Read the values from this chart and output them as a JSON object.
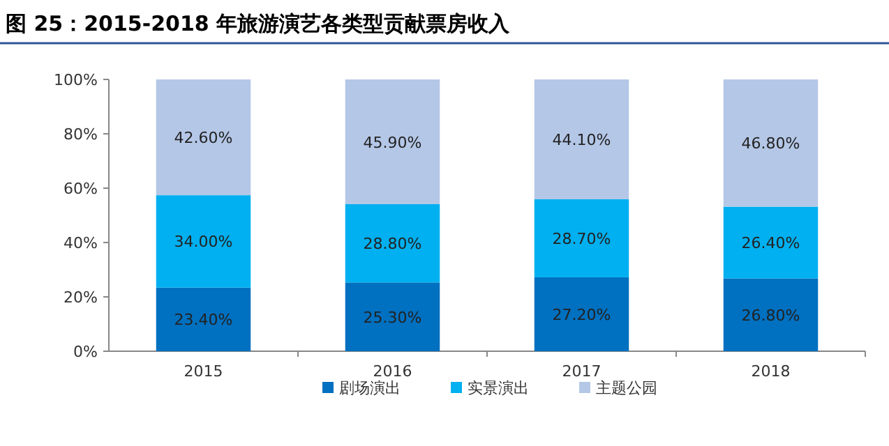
{
  "chart_data": {
    "type": "bar",
    "title": "图 25：2015-2018 年旅游演艺各类型贡献票房收入",
    "stacked": true,
    "legend": "bottom",
    "categories": [
      "2015",
      "2016",
      "2017",
      "2018"
    ],
    "ylim": [
      0,
      100
    ],
    "yticks": [
      {
        "value": 0,
        "label": "0%"
      },
      {
        "value": 20,
        "label": "20%"
      },
      {
        "value": 40,
        "label": "40%"
      },
      {
        "value": 60,
        "label": "60%"
      },
      {
        "value": 80,
        "label": "80%"
      },
      {
        "value": 100,
        "label": "100%"
      }
    ],
    "series": [
      {
        "name": "剧场演出",
        "color": "#0070c0",
        "values": [
          23.4,
          25.3,
          27.2,
          26.8
        ],
        "value_labels": [
          "23.40%",
          "25.30%",
          "27.20%",
          "26.80%"
        ]
      },
      {
        "name": "实景演出",
        "color": "#00b0f0",
        "values": [
          34.0,
          28.8,
          28.7,
          26.4
        ],
        "value_labels": [
          "34.00%",
          "28.80%",
          "28.70%",
          "26.40%"
        ]
      },
      {
        "name": "主题公园",
        "color": "#b4c7e7",
        "values": [
          42.6,
          45.9,
          44.1,
          46.8
        ],
        "value_labels": [
          "42.60%",
          "45.90%",
          "44.10%",
          "46.80%"
        ]
      }
    ]
  }
}
